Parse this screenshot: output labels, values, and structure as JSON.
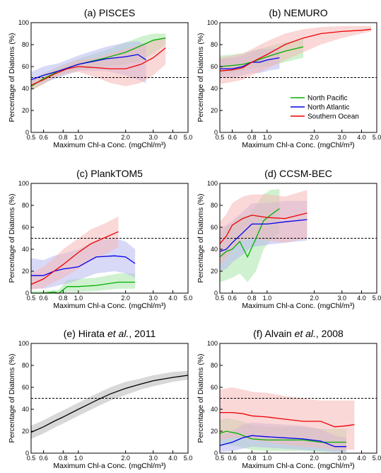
{
  "chart_data": [
    {
      "type": "line",
      "title": "(a) PISCES",
      "xlabel": "Maximum Chl-a Conc. (mgChl/m³)",
      "ylabel": "Percentage of Diatoms (%)",
      "xscale": "log",
      "xlim": [
        0.5,
        5.0
      ],
      "ylim": [
        0,
        100
      ],
      "xticks": [
        "0.5",
        "0.6",
        "0.8",
        "1.0",
        "2.0",
        "3.0",
        "4.0",
        "5.0"
      ],
      "yticks": [
        "0",
        "20",
        "40",
        "60",
        "80",
        "100"
      ],
      "reference_line": 50,
      "series": [
        {
          "color": "#00b000",
          "band": "#a8e6a8",
          "x": [
            0.5,
            0.6,
            0.75,
            1.0,
            1.5,
            2.0,
            2.6,
            3.0,
            3.6
          ],
          "y": [
            42,
            49,
            56,
            62,
            68,
            73,
            80,
            84,
            86
          ],
          "lo": [
            38,
            44,
            52,
            57,
            60,
            62,
            66,
            72,
            80
          ],
          "hi": [
            47,
            54,
            60,
            67,
            75,
            82,
            88,
            90,
            90
          ]
        },
        {
          "color": "#0000ee",
          "band": "#b8b8f0",
          "x": [
            0.5,
            0.6,
            0.75,
            1.0,
            1.5,
            2.0,
            2.4,
            2.7
          ],
          "y": [
            48,
            52,
            56,
            62,
            67,
            69,
            71,
            66
          ],
          "lo": [
            42,
            45,
            50,
            56,
            56,
            52,
            48,
            45
          ],
          "hi": [
            55,
            60,
            63,
            70,
            78,
            82,
            83,
            80
          ]
        },
        {
          "color": "#ee0000",
          "band": "#f5b8b8",
          "x": [
            0.5,
            0.6,
            0.7,
            0.85,
            1.0,
            1.3,
            1.6,
            2.0,
            2.5,
            3.0,
            3.6
          ],
          "y": [
            43,
            48,
            53,
            58,
            60,
            59,
            58,
            58,
            62,
            68,
            77
          ],
          "lo": [
            38,
            44,
            50,
            54,
            55,
            50,
            45,
            42,
            45,
            52,
            62
          ],
          "hi": [
            48,
            53,
            57,
            62,
            66,
            68,
            72,
            76,
            80,
            84,
            86
          ]
        }
      ]
    },
    {
      "type": "line",
      "title": "(b) NEMURO",
      "xlabel": "Maximum Chl-a Conc. (mgChl/m³)",
      "ylabel": "Percentage of Diatoms (%)",
      "xscale": "log",
      "xlim": [
        0.5,
        5.0
      ],
      "ylim": [
        0,
        100
      ],
      "xticks": [
        "0.5",
        "0.6",
        "0.8",
        "1.0",
        "2.0",
        "3.0",
        "4.0",
        "5.0"
      ],
      "yticks": [
        "0",
        "20",
        "40",
        "60",
        "80",
        "100"
      ],
      "reference_line": 50,
      "legend": {
        "position": "center-right",
        "entries": [
          {
            "label": "North Pacific",
            "color": "#00b000"
          },
          {
            "label": "North Atlantic",
            "color": "#0000ee"
          },
          {
            "label": "Southern Ocean",
            "color": "#ee0000"
          }
        ]
      },
      "series": [
        {
          "color": "#00b000",
          "band": "#a8e6a8",
          "x": [
            0.5,
            0.6,
            0.7,
            0.8,
            1.0,
            1.3,
            1.7
          ],
          "y": [
            60,
            61,
            62,
            64,
            69,
            74,
            78
          ],
          "lo": [
            52,
            54,
            56,
            58,
            60,
            64,
            68
          ],
          "hi": [
            70,
            71,
            72,
            74,
            78,
            82,
            86
          ]
        },
        {
          "color": "#0000ee",
          "band": "#b8b8f0",
          "x": [
            0.5,
            0.6,
            0.7,
            0.8,
            0.9,
            1.0,
            1.2
          ],
          "y": [
            58,
            58,
            60,
            64,
            64,
            66,
            68
          ],
          "lo": [
            50,
            50,
            52,
            54,
            54,
            56,
            58
          ],
          "hi": [
            67,
            68,
            70,
            74,
            76,
            76,
            77
          ]
        },
        {
          "color": "#ee0000",
          "band": "#f5b8b8",
          "x": [
            0.5,
            0.6,
            0.7,
            0.8,
            1.0,
            1.3,
            1.7,
            2.2,
            3.0,
            4.0,
            4.6
          ],
          "y": [
            56,
            57,
            59,
            64,
            71,
            80,
            86,
            90,
            92,
            93,
            94
          ],
          "lo": [
            44,
            46,
            48,
            52,
            58,
            66,
            73,
            80,
            86,
            90,
            92
          ],
          "hi": [
            68,
            70,
            72,
            76,
            83,
            90,
            94,
            96,
            97,
            97,
            97
          ]
        }
      ]
    },
    {
      "type": "line",
      "title": "(c) PlankTOM5",
      "xlabel": "Maximum Chl-a Conc. (mgChl/m³)",
      "ylabel": "Percentage of Diatoms (%)",
      "xscale": "log",
      "xlim": [
        0.5,
        5.0
      ],
      "ylim": [
        0,
        100
      ],
      "xticks": [
        "0.5",
        "0.6",
        "0.8",
        "1.0",
        "2.0",
        "3.0",
        "4.0",
        "5.0"
      ],
      "yticks": [
        "0",
        "20",
        "40",
        "60",
        "80",
        "100"
      ],
      "reference_line": 50,
      "series": [
        {
          "color": "#00b000",
          "band": "#a8e6a8",
          "x": [
            0.5,
            0.6,
            0.7,
            0.75,
            0.85,
            1.0,
            1.3,
            1.8,
            2.3
          ],
          "y": [
            0,
            0,
            1,
            0,
            6,
            6,
            7,
            10,
            10
          ],
          "lo": [
            0,
            0,
            0,
            0,
            1,
            1,
            2,
            4,
            4
          ],
          "hi": [
            2,
            2,
            3,
            3,
            12,
            13,
            14,
            18,
            18
          ]
        },
        {
          "color": "#0000ee",
          "band": "#b8b8f0",
          "x": [
            0.5,
            0.6,
            0.7,
            0.8,
            0.9,
            1.0,
            1.3,
            1.7,
            2.0,
            2.3
          ],
          "y": [
            16,
            16,
            20,
            22,
            23,
            24,
            33,
            34,
            33,
            27
          ],
          "lo": [
            4,
            4,
            6,
            8,
            10,
            12,
            18,
            20,
            18,
            14
          ],
          "hi": [
            32,
            30,
            34,
            36,
            38,
            40,
            48,
            50,
            47,
            40
          ]
        },
        {
          "color": "#ee0000",
          "band": "#f5b8b8",
          "x": [
            0.5,
            0.6,
            0.7,
            0.8,
            1.0,
            1.2,
            1.5,
            1.8
          ],
          "y": [
            8,
            13,
            20,
            26,
            37,
            45,
            51,
            56
          ],
          "lo": [
            3,
            5,
            10,
            14,
            22,
            30,
            36,
            42
          ],
          "hi": [
            18,
            24,
            32,
            40,
            50,
            58,
            64,
            70
          ]
        }
      ]
    },
    {
      "type": "line",
      "title": "(d) CCSM-BEC",
      "xlabel": "Maximum Chl-a Conc. (mgChl/m³)",
      "ylabel": "Percentage of Diatoms (%)",
      "xscale": "log",
      "xlim": [
        0.5,
        5.0
      ],
      "ylim": [
        0,
        100
      ],
      "xticks": [
        "0.5",
        "0.6",
        "0.8",
        "1.0",
        "2.0",
        "3.0",
        "4.0",
        "5.0"
      ],
      "yticks": [
        "0",
        "20",
        "40",
        "60",
        "80",
        "100"
      ],
      "reference_line": 50,
      "series": [
        {
          "color": "#00b000",
          "band": "#a8e6a8",
          "x": [
            0.5,
            0.55,
            0.6,
            0.67,
            0.75,
            0.85,
            0.95,
            1.05,
            1.2
          ],
          "y": [
            33,
            38,
            40,
            47,
            33,
            50,
            66,
            71,
            77
          ],
          "lo": [
            10,
            12,
            14,
            18,
            10,
            20,
            40,
            48,
            55
          ],
          "hi": [
            55,
            60,
            64,
            70,
            70,
            80,
            90,
            94,
            95
          ]
        },
        {
          "color": "#0000ee",
          "band": "#b8b8f0",
          "x": [
            0.5,
            0.55,
            0.6,
            0.7,
            0.8,
            1.0,
            1.3,
            1.8
          ],
          "y": [
            38,
            40,
            46,
            55,
            63,
            63,
            65,
            67
          ],
          "lo": [
            20,
            22,
            28,
            35,
            42,
            44,
            46,
            48
          ],
          "hi": [
            58,
            62,
            66,
            74,
            82,
            82,
            84,
            84
          ]
        },
        {
          "color": "#ee0000",
          "band": "#f5b8b8",
          "x": [
            0.5,
            0.55,
            0.6,
            0.7,
            0.8,
            1.0,
            1.3,
            1.8
          ],
          "y": [
            45,
            52,
            62,
            68,
            71,
            69,
            68,
            73
          ],
          "lo": [
            25,
            32,
            40,
            48,
            50,
            48,
            46,
            50
          ],
          "hi": [
            65,
            72,
            82,
            88,
            90,
            90,
            88,
            94
          ]
        }
      ]
    },
    {
      "type": "line",
      "title": "(e) Hirata et al., 2011",
      "xlabel": "Maximum Chl-a Conc. (mgChl/m³)",
      "ylabel": "Percentage of Diatoms (%)",
      "xscale": "log",
      "xlim": [
        0.5,
        5.0
      ],
      "ylim": [
        0,
        100
      ],
      "xticks": [
        "0.5",
        "0.6",
        "0.8",
        "1.0",
        "2.0",
        "3.0",
        "4.0",
        "5.0"
      ],
      "yticks": [
        "0",
        "20",
        "40",
        "60",
        "80",
        "100"
      ],
      "reference_line": 50,
      "series": [
        {
          "color": "#000000",
          "band": "#b8b8b8",
          "x": [
            0.5,
            0.6,
            0.7,
            0.8,
            1.0,
            1.3,
            1.6,
            2.0,
            2.5,
            3.0,
            4.0,
            5.0
          ],
          "y": [
            19,
            24,
            29,
            33,
            40,
            48,
            54,
            59,
            63,
            66,
            69,
            71
          ],
          "lo": [
            13,
            18,
            23,
            27,
            34,
            42,
            48,
            53,
            58,
            61,
            65,
            67
          ],
          "hi": [
            25,
            30,
            35,
            39,
            46,
            54,
            60,
            65,
            68,
            71,
            74,
            75
          ]
        }
      ]
    },
    {
      "type": "line",
      "title": "(f) Alvain et al., 2008",
      "xlabel": "Maximum Chl-a Conc. (mgChl/m³)",
      "ylabel": "Percentage of Diatoms (%)",
      "xscale": "log",
      "xlim": [
        0.5,
        5.0
      ],
      "ylim": [
        0,
        100
      ],
      "xticks": [
        "0.5",
        "0.6",
        "0.8",
        "1.0",
        "2.0",
        "3.0",
        "4.0",
        "5.0"
      ],
      "yticks": [
        "0",
        "20",
        "40",
        "60",
        "80",
        "100"
      ],
      "reference_line": 50,
      "series": [
        {
          "color": "#00b000",
          "band": "#a8e6a8",
          "x": [
            0.5,
            0.55,
            0.65,
            0.8,
            1.0,
            1.3,
            1.7,
            2.2,
            2.7,
            3.2
          ],
          "y": [
            18,
            20,
            18,
            13,
            12,
            12,
            12,
            10,
            10,
            10
          ],
          "lo": [
            6,
            8,
            6,
            3,
            2,
            2,
            2,
            1,
            1,
            1
          ],
          "hi": [
            30,
            32,
            30,
            26,
            24,
            24,
            24,
            22,
            22,
            22
          ]
        },
        {
          "color": "#0000ee",
          "band": "#b8b8f0",
          "x": [
            0.5,
            0.6,
            0.7,
            0.8,
            1.0,
            1.3,
            1.7,
            2.2,
            2.7,
            3.2
          ],
          "y": [
            7,
            10,
            14,
            16,
            15,
            14,
            13,
            11,
            6,
            6
          ],
          "lo": [
            1,
            2,
            4,
            6,
            5,
            4,
            3,
            2,
            1,
            1
          ],
          "hi": [
            16,
            20,
            26,
            28,
            27,
            26,
            25,
            22,
            16,
            14
          ]
        },
        {
          "color": "#ee0000",
          "band": "#f5b8b8",
          "x": [
            0.5,
            0.6,
            0.7,
            0.8,
            1.0,
            1.3,
            1.7,
            2.2,
            2.7,
            3.2,
            3.6
          ],
          "y": [
            37,
            37,
            36,
            34,
            33,
            31,
            29,
            29,
            24,
            25,
            26
          ],
          "lo": [
            12,
            14,
            14,
            12,
            10,
            8,
            6,
            5,
            3,
            3,
            3
          ],
          "hi": [
            58,
            60,
            58,
            56,
            55,
            52,
            50,
            48,
            48,
            48,
            48
          ]
        }
      ]
    }
  ]
}
